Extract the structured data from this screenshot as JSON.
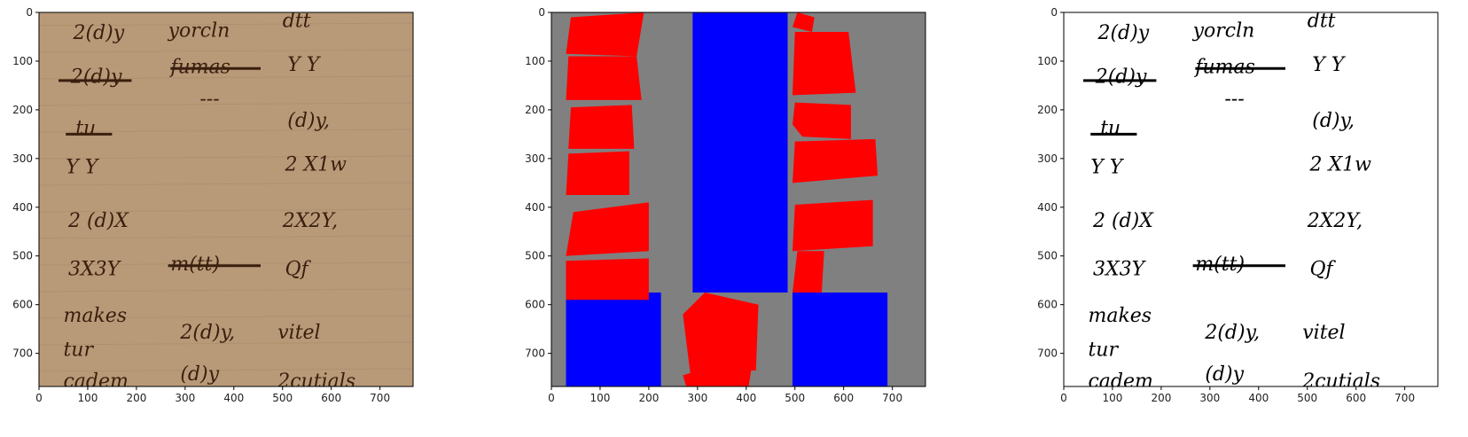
{
  "figure": {
    "axes": {
      "xlim": [
        0,
        768
      ],
      "ylim": [
        768,
        0
      ],
      "xticks": [
        0,
        100,
        200,
        300,
        400,
        500,
        600,
        700
      ],
      "yticks": [
        0,
        100,
        200,
        300,
        400,
        500,
        600,
        700
      ]
    },
    "colors": {
      "parchment": "#b89a78",
      "parchment_dark": "#a58866",
      "ink": "#3a1e0e",
      "mask_background": "#808080",
      "mask_red": "#ff0000",
      "mask_blue": "#0000ff",
      "binary_bg": "#ffffff",
      "binary_ink": "#000000"
    },
    "panels": [
      {
        "id": "original",
        "description": "manuscript crop, handwritten ink on parchment"
      },
      {
        "id": "mask",
        "description": "segmentation mask with red word regions and blue column regions"
      },
      {
        "id": "binary",
        "description": "binarized handwriting"
      }
    ],
    "words": [
      {
        "text": "2(d)y",
        "x": 70,
        "y": 55
      },
      {
        "text": "yorcln",
        "x": 265,
        "y": 50
      },
      {
        "text": "dtt",
        "x": 500,
        "y": 30
      },
      {
        "text": "2(d)y",
        "x": 65,
        "y": 145
      },
      {
        "text": "fumas",
        "x": 270,
        "y": 125
      },
      {
        "text": "Y Y",
        "x": 510,
        "y": 120
      },
      {
        "text": "---",
        "x": 330,
        "y": 190
      },
      {
        "text": "tu",
        "x": 75,
        "y": 250
      },
      {
        "text": "(d)y,",
        "x": 510,
        "y": 235
      },
      {
        "text": "Y Y",
        "x": 55,
        "y": 330
      },
      {
        "text": "2 X1w",
        "x": 505,
        "y": 325
      },
      {
        "text": "2 (d)X",
        "x": 60,
        "y": 440
      },
      {
        "text": "2X2Y,",
        "x": 500,
        "y": 440
      },
      {
        "text": "3X3Y",
        "x": 60,
        "y": 540
      },
      {
        "text": "m(tt)",
        "x": 270,
        "y": 530
      },
      {
        "text": "Qf",
        "x": 505,
        "y": 540
      },
      {
        "text": "makes",
        "x": 50,
        "y": 635
      },
      {
        "text": "2(d)y,",
        "x": 290,
        "y": 670
      },
      {
        "text": "vitel",
        "x": 490,
        "y": 670
      },
      {
        "text": "tur",
        "x": 50,
        "y": 705
      },
      {
        "text": "cadem",
        "x": 50,
        "y": 770
      },
      {
        "text": "(d)y",
        "x": 290,
        "y": 755
      },
      {
        "text": "2cutials",
        "x": 490,
        "y": 770
      }
    ],
    "mask_regions": {
      "red": [
        [
          [
            40,
            10
          ],
          [
            190,
            0
          ],
          [
            175,
            90
          ],
          [
            30,
            85
          ]
        ],
        [
          [
            35,
            90
          ],
          [
            175,
            90
          ],
          [
            185,
            180
          ],
          [
            30,
            180
          ]
        ],
        [
          [
            40,
            195
          ],
          [
            165,
            190
          ],
          [
            170,
            280
          ],
          [
            35,
            280
          ]
        ],
        [
          [
            35,
            290
          ],
          [
            160,
            285
          ],
          [
            160,
            375
          ],
          [
            30,
            375
          ]
        ],
        [
          [
            45,
            410
          ],
          [
            200,
            390
          ],
          [
            200,
            490
          ],
          [
            30,
            500
          ]
        ],
        [
          [
            30,
            510
          ],
          [
            200,
            505
          ],
          [
            200,
            590
          ],
          [
            30,
            590
          ]
        ],
        [
          [
            505,
            0
          ],
          [
            540,
            10
          ],
          [
            535,
            40
          ],
          [
            495,
            30
          ]
        ],
        [
          [
            500,
            40
          ],
          [
            610,
            40
          ],
          [
            625,
            165
          ],
          [
            495,
            170
          ]
        ],
        [
          [
            500,
            185
          ],
          [
            615,
            190
          ],
          [
            615,
            260
          ],
          [
            515,
            255
          ],
          [
            495,
            230
          ]
        ],
        [
          [
            500,
            265
          ],
          [
            665,
            260
          ],
          [
            670,
            335
          ],
          [
            495,
            350
          ]
        ],
        [
          [
            500,
            395
          ],
          [
            660,
            385
          ],
          [
            660,
            480
          ],
          [
            495,
            490
          ]
        ],
        [
          [
            505,
            490
          ],
          [
            560,
            490
          ],
          [
            555,
            575
          ],
          [
            495,
            575
          ]
        ],
        [
          [
            270,
            620
          ],
          [
            315,
            575
          ],
          [
            425,
            600
          ],
          [
            420,
            735
          ],
          [
            285,
            740
          ]
        ],
        [
          [
            270,
            745
          ],
          [
            320,
            730
          ],
          [
            410,
            735
          ],
          [
            400,
            800
          ],
          [
            285,
            795
          ]
        ]
      ],
      "blue": [
        [
          [
            290,
            0
          ],
          [
            485,
            0
          ],
          [
            485,
            575
          ],
          [
            290,
            575
          ]
        ],
        [
          [
            30,
            575
          ],
          [
            225,
            575
          ],
          [
            225,
            790
          ],
          [
            30,
            790
          ]
        ],
        [
          [
            495,
            575
          ],
          [
            690,
            575
          ],
          [
            690,
            790
          ],
          [
            495,
            790
          ]
        ]
      ]
    }
  }
}
